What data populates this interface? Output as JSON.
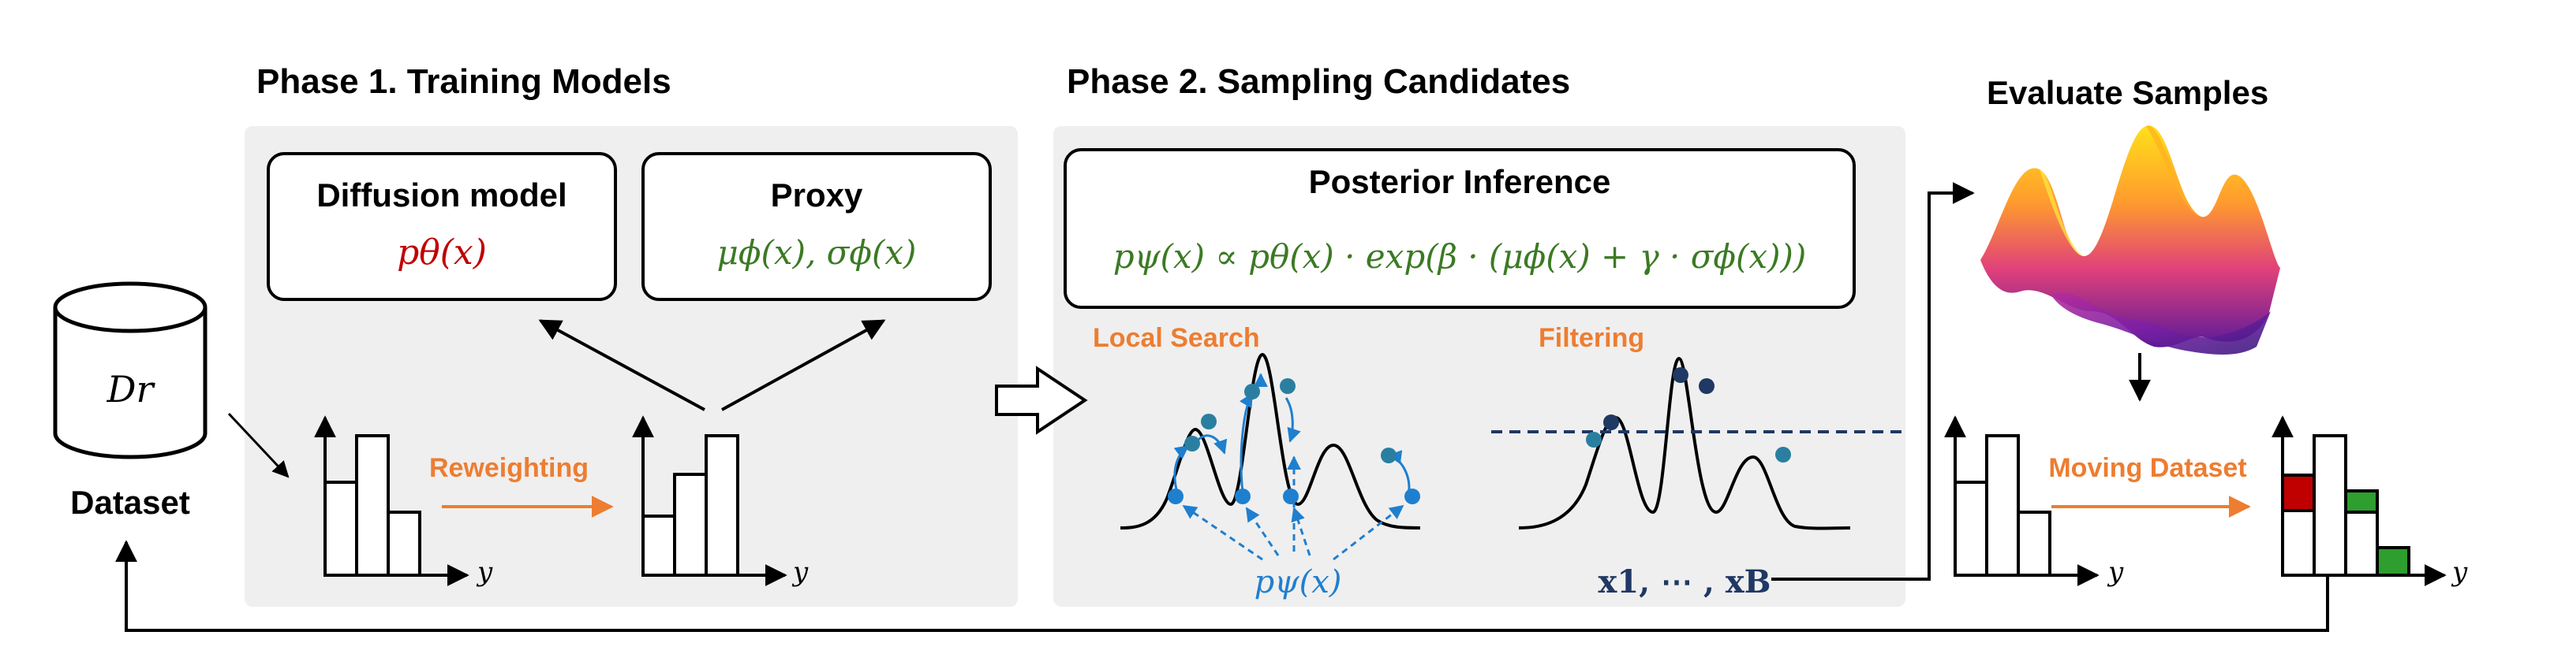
{
  "phase1": {
    "title": "Phase 1. Training Models",
    "diffusion_title": "Diffusion model",
    "diffusion_formula": "pθ(x)",
    "proxy_title": "Proxy",
    "proxy_formula": "μϕ(x), σϕ(x)",
    "reweighting_label": "Reweighting",
    "axis_label": "y"
  },
  "dataset": {
    "symbol": "Dr",
    "label": "Dataset"
  },
  "phase2": {
    "title": "Phase 2. Sampling Candidates",
    "posterior_title": "Posterior Inference",
    "posterior_formula": "pψ(x) ∝ pθ(x) · exp(β · (μϕ(x) + γ · σϕ(x)))",
    "local_search_label": "Local Search",
    "filtering_label": "Filtering",
    "sampler_label": "pψ(x)",
    "candidates_label": "x1, ⋯ , xB"
  },
  "evaluate": {
    "title": "Evaluate Samples",
    "moving_label": "Moving Dataset",
    "axis_label": "y"
  },
  "colors": {
    "panel_bg": "#efefef",
    "accent_orange": "#ed7d31",
    "model_red": "#c00000",
    "proxy_green": "#3b7a24",
    "psi_blue": "#1f7fcf",
    "navy": "#1f3864",
    "bar_red": "#c00000",
    "bar_green": "#2e9e2e"
  }
}
